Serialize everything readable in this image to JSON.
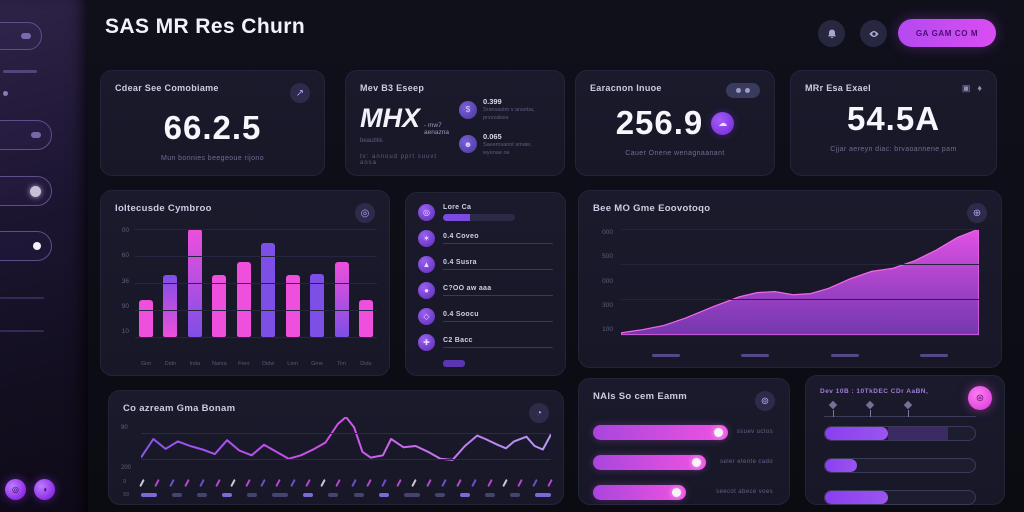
{
  "header": {
    "title": "SAS MR Res Churn",
    "cta_label": "GA GAM CO M",
    "icon_buttons": [
      "bell",
      "eye"
    ]
  },
  "accent_colors": {
    "magenta": "#ec4fdc",
    "purple": "#7e4fe6",
    "button": "#c44df2",
    "card_bg": "#18182a"
  },
  "kpis": [
    {
      "label": "Cdear See Comobiame",
      "value": "66.2.5",
      "sub": "Mun bonnies beegeoue rijono"
    },
    {
      "label": "Mev B3 Eseep",
      "value": "MHX",
      "value_note": "- mw7 aenazna",
      "value_subnote": "beaubtis",
      "footer": "tv:  annoud   pprt   suuvt   aosa",
      "stats": [
        {
          "icon": "dollar",
          "value": "0.399",
          "sub": "Sransastm v anseba,",
          "sub2": "prvvzabea"
        },
        {
          "icon": "user",
          "value": "0.065",
          "sub": "Saeemsanot smate,",
          "sub2": "wyenae oe"
        }
      ]
    },
    {
      "label": "Earacnon Inuoe",
      "value": "256.9",
      "sub": "Cauer Onene wenagnaanant"
    },
    {
      "label": "MRr Esa Exael",
      "value": "54.5A",
      "sub": "Cjjar aereyn diac: brvaoannene pam"
    }
  ],
  "source_list": {
    "items": [
      {
        "icon": "target",
        "label": "Lore Ca",
        "pill": true
      },
      {
        "icon": "flame",
        "label": "0.4 Coveo"
      },
      {
        "icon": "mountain",
        "label": "0.4 Susra"
      },
      {
        "icon": "globe",
        "label": "C?OO aw aaa"
      },
      {
        "icon": "ring",
        "label": "0.4 Soocu"
      },
      {
        "icon": "gear",
        "label": "C2 Bacc"
      }
    ]
  },
  "progress_card": {
    "title": "NAls So cem Eamm",
    "bars": [
      {
        "width_pct": 74,
        "label": "ssuev uctos"
      },
      {
        "width_pct": 62,
        "label": "seler etente cado"
      },
      {
        "width_pct": 51,
        "label": "seecot abece voes"
      }
    ]
  },
  "goals_card": {
    "title": "Dev 10B : 10TkDEC CDr AaBN,",
    "axis_marker_positions": [
      6,
      30,
      55
    ],
    "bars": [
      {
        "fill_pct": 42,
        "fill2_pct": 82
      },
      {
        "fill_pct": 21,
        "fill2_pct": 0
      },
      {
        "fill_pct": 42,
        "fill2_pct": 0
      }
    ]
  },
  "line_extras": {
    "slash_count": 28,
    "dash_count": 16,
    "left_labels": [
      "9",
      "99"
    ]
  },
  "chart_data": [
    {
      "type": "bar",
      "title": "Ioltecusde Cymbroo",
      "y_ticks": [
        "00",
        "60",
        "36",
        "90",
        "10"
      ],
      "categories": [
        "Gim",
        "Didn",
        "Inda",
        "Nama",
        "Fren",
        "Didw",
        "Lem",
        "Gme",
        "Tim",
        "Didu"
      ],
      "values": [
        34,
        57,
        100,
        57,
        69,
        87,
        57,
        58,
        69,
        34
      ],
      "bar_colors": [
        "pink",
        "purple-pink",
        "pink-purple",
        "pink",
        "pink",
        "purple",
        "pink",
        "purple",
        "pink-purple",
        "pink"
      ],
      "ylim": [
        0,
        100
      ],
      "grid": true,
      "legend": false,
      "palette": {
        "pink": "#ee4fdc",
        "purple": "#7e4fe6"
      }
    },
    {
      "type": "area",
      "title": "Bee MO Gme Eoovotoqo",
      "y_ticks": [
        "000",
        "500",
        "000",
        "300",
        "100"
      ],
      "x_tick_dashes": 4,
      "points": [
        [
          0,
          2
        ],
        [
          6,
          5
        ],
        [
          12,
          9
        ],
        [
          18,
          16
        ],
        [
          26,
          27
        ],
        [
          33,
          36
        ],
        [
          38,
          40
        ],
        [
          43,
          41
        ],
        [
          48,
          38
        ],
        [
          53,
          39
        ],
        [
          58,
          44
        ],
        [
          64,
          53
        ],
        [
          70,
          60
        ],
        [
          76,
          63
        ],
        [
          82,
          70
        ],
        [
          88,
          80
        ],
        [
          94,
          92
        ],
        [
          100,
          100
        ]
      ],
      "color_top": "#ee55ee",
      "color_bottom": "#8a3fd0",
      "grid": true
    },
    {
      "type": "line",
      "title": "Co azream Gma Bonam",
      "y_ticks": [
        "90",
        "200"
      ],
      "points": [
        [
          0,
          30
        ],
        [
          3,
          62
        ],
        [
          6,
          45
        ],
        [
          9,
          58
        ],
        [
          12,
          50
        ],
        [
          15,
          44
        ],
        [
          18,
          36
        ],
        [
          21,
          60
        ],
        [
          24,
          42
        ],
        [
          27,
          34
        ],
        [
          30,
          52
        ],
        [
          33,
          40
        ],
        [
          36,
          28
        ],
        [
          39,
          34
        ],
        [
          42,
          44
        ],
        [
          45,
          56
        ],
        [
          48,
          88
        ],
        [
          50,
          100
        ],
        [
          52,
          82
        ],
        [
          54,
          40
        ],
        [
          56,
          30
        ],
        [
          59,
          34
        ],
        [
          61,
          62
        ],
        [
          64,
          48
        ],
        [
          67,
          50
        ],
        [
          70,
          40
        ],
        [
          73,
          28
        ],
        [
          76,
          26
        ],
        [
          79,
          50
        ],
        [
          82,
          68
        ],
        [
          84,
          62
        ],
        [
          87,
          52
        ],
        [
          89,
          46
        ],
        [
          91,
          58
        ],
        [
          94,
          66
        ],
        [
          96,
          50
        ],
        [
          98,
          44
        ],
        [
          100,
          70
        ]
      ],
      "stroke_colors": [
        "#8a55ee",
        "#d24fe8",
        "#b79af5"
      ],
      "grid": true
    }
  ]
}
